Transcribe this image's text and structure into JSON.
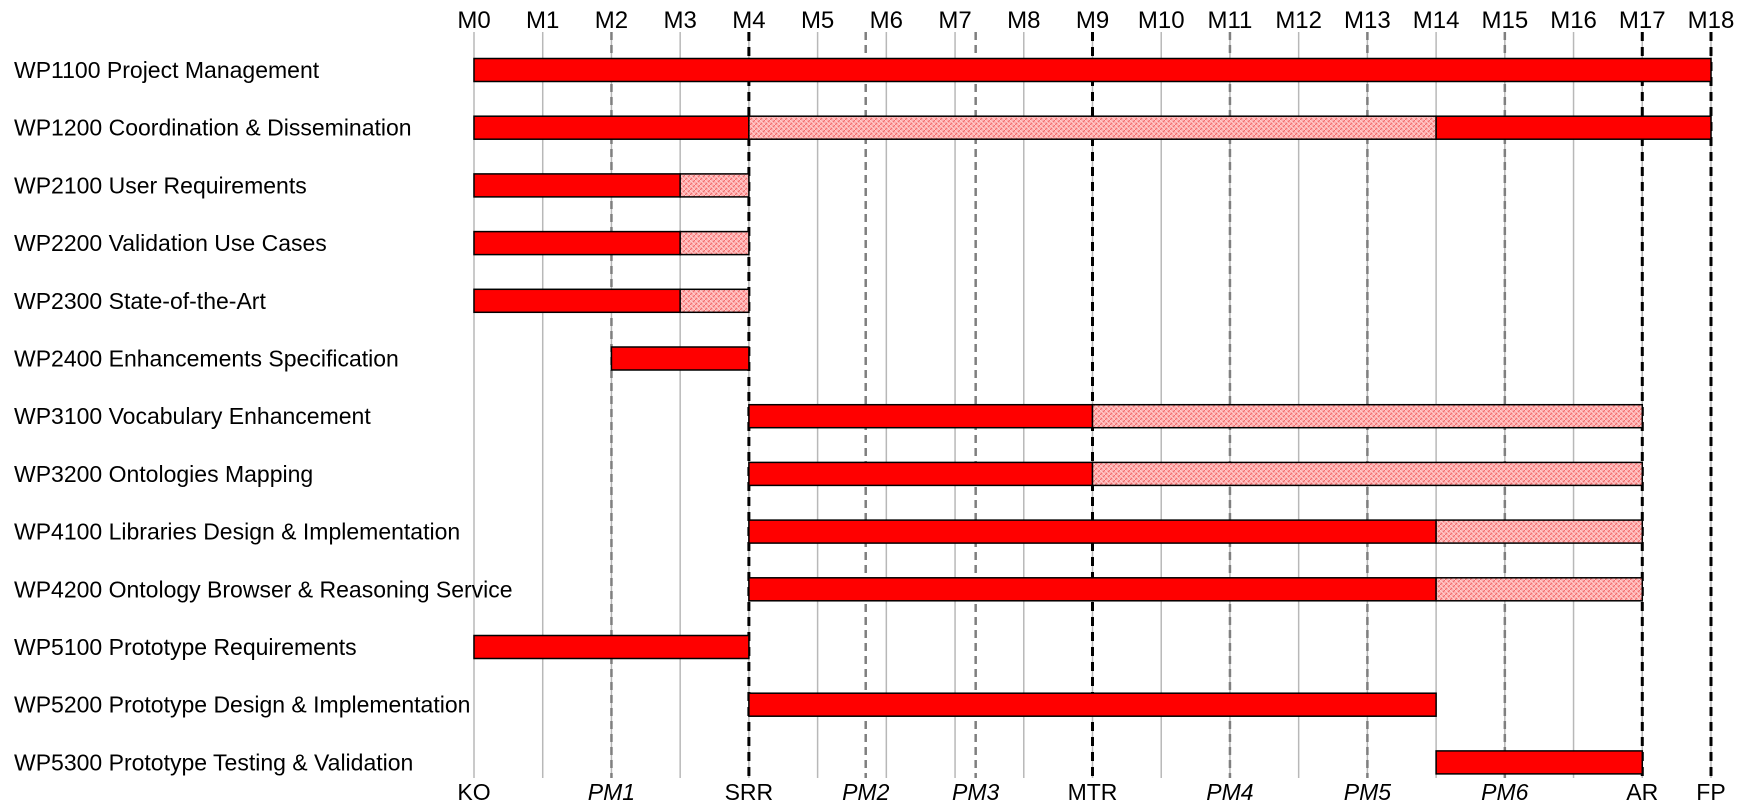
{
  "chart_data": {
    "type": "gantt",
    "months": [
      "M0",
      "M1",
      "M2",
      "M3",
      "M4",
      "M5",
      "M6",
      "M7",
      "M8",
      "M9",
      "M10",
      "M11",
      "M12",
      "M13",
      "M14",
      "M15",
      "M16",
      "M17",
      "M18"
    ],
    "tasks": [
      {
        "label": "WP1100 Project Management",
        "segments": [
          {
            "start": 0,
            "end": 18,
            "style": "solid"
          }
        ]
      },
      {
        "label": "WP1200 Coordination & Dissemination",
        "segments": [
          {
            "start": 0,
            "end": 4,
            "style": "solid"
          },
          {
            "start": 4,
            "end": 14,
            "style": "hatched"
          },
          {
            "start": 14,
            "end": 18,
            "style": "solid"
          }
        ]
      },
      {
        "label": "WP2100 User Requirements",
        "segments": [
          {
            "start": 0,
            "end": 3,
            "style": "solid"
          },
          {
            "start": 3,
            "end": 4,
            "style": "hatched"
          }
        ]
      },
      {
        "label": "WP2200 Validation Use Cases",
        "segments": [
          {
            "start": 0,
            "end": 3,
            "style": "solid"
          },
          {
            "start": 3,
            "end": 4,
            "style": "hatched"
          }
        ]
      },
      {
        "label": "WP2300 State-of-the-Art",
        "segments": [
          {
            "start": 0,
            "end": 3,
            "style": "solid"
          },
          {
            "start": 3,
            "end": 4,
            "style": "hatched"
          }
        ]
      },
      {
        "label": "WP2400 Enhancements Specification",
        "segments": [
          {
            "start": 2,
            "end": 4,
            "style": "solid"
          }
        ]
      },
      {
        "label": "WP3100 Vocabulary Enhancement",
        "segments": [
          {
            "start": 4,
            "end": 9,
            "style": "solid"
          },
          {
            "start": 9,
            "end": 17,
            "style": "hatched"
          }
        ]
      },
      {
        "label": "WP3200 Ontologies Mapping",
        "segments": [
          {
            "start": 4,
            "end": 9,
            "style": "solid"
          },
          {
            "start": 9,
            "end": 17,
            "style": "hatched"
          }
        ]
      },
      {
        "label": "WP4100 Libraries Design & Implementation",
        "segments": [
          {
            "start": 4,
            "end": 14,
            "style": "solid"
          },
          {
            "start": 14,
            "end": 17,
            "style": "hatched"
          }
        ]
      },
      {
        "label": "WP4200 Ontology Browser & Reasoning Service",
        "segments": [
          {
            "start": 4,
            "end": 14,
            "style": "solid"
          },
          {
            "start": 14,
            "end": 17,
            "style": "hatched"
          }
        ]
      },
      {
        "label": "WP5100 Prototype Requirements",
        "segments": [
          {
            "start": 0,
            "end": 4,
            "style": "solid"
          }
        ]
      },
      {
        "label": "WP5200 Prototype Design & Implementation",
        "segments": [
          {
            "start": 4,
            "end": 14,
            "style": "solid"
          }
        ]
      },
      {
        "label": "WP5300 Prototype Testing & Validation",
        "segments": [
          {
            "start": 14,
            "end": 17,
            "style": "solid"
          }
        ]
      }
    ],
    "milestones": [
      {
        "label": "KO",
        "month": 0,
        "italic": false,
        "line": "none"
      },
      {
        "label": "PM1",
        "month": 2,
        "italic": true,
        "line": "gray-dashed"
      },
      {
        "label": "SRR",
        "month": 4,
        "italic": false,
        "line": "black-dashed"
      },
      {
        "label": "PM2",
        "month": 5.7,
        "italic": true,
        "line": "gray-dashed"
      },
      {
        "label": "PM3",
        "month": 7.3,
        "italic": true,
        "line": "gray-dashed"
      },
      {
        "label": "MTR",
        "month": 9,
        "italic": false,
        "line": "black-dashed"
      },
      {
        "label": "PM4",
        "month": 11,
        "italic": true,
        "line": "gray-dashed"
      },
      {
        "label": "PM5",
        "month": 13,
        "italic": true,
        "line": "gray-dashed"
      },
      {
        "label": "PM6",
        "month": 15,
        "italic": true,
        "line": "gray-dashed"
      },
      {
        "label": "AR",
        "month": 17,
        "italic": false,
        "line": "black-dashed"
      },
      {
        "label": "FP",
        "month": 18,
        "italic": false,
        "line": "black-dashed"
      }
    ],
    "colors": {
      "bar": "#ff0000",
      "hatched": "#ff9c9c",
      "grid": "#b8b8b8",
      "milestone": "#000000",
      "pm_line": "#7f7f7f"
    }
  }
}
